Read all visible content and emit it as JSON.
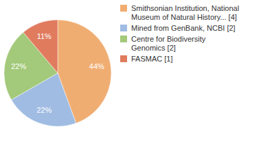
{
  "chart_data": {
    "type": "pie",
    "categories": [
      "Smithsonian Institution, National Museum of Natural History... [4]",
      "Mined from GenBank, NCBI [2]",
      "Centre for Biodiversity Genomics [2]",
      "FASMAC [1]"
    ],
    "values": [
      44,
      22,
      22,
      11
    ],
    "value_labels": [
      "44%",
      "22%",
      "22%",
      "11%"
    ],
    "colors": [
      "#f0ad72",
      "#a0bce2",
      "#a3c97a",
      "#e07b5e"
    ],
    "data_labels": true,
    "legend": "top-right"
  }
}
